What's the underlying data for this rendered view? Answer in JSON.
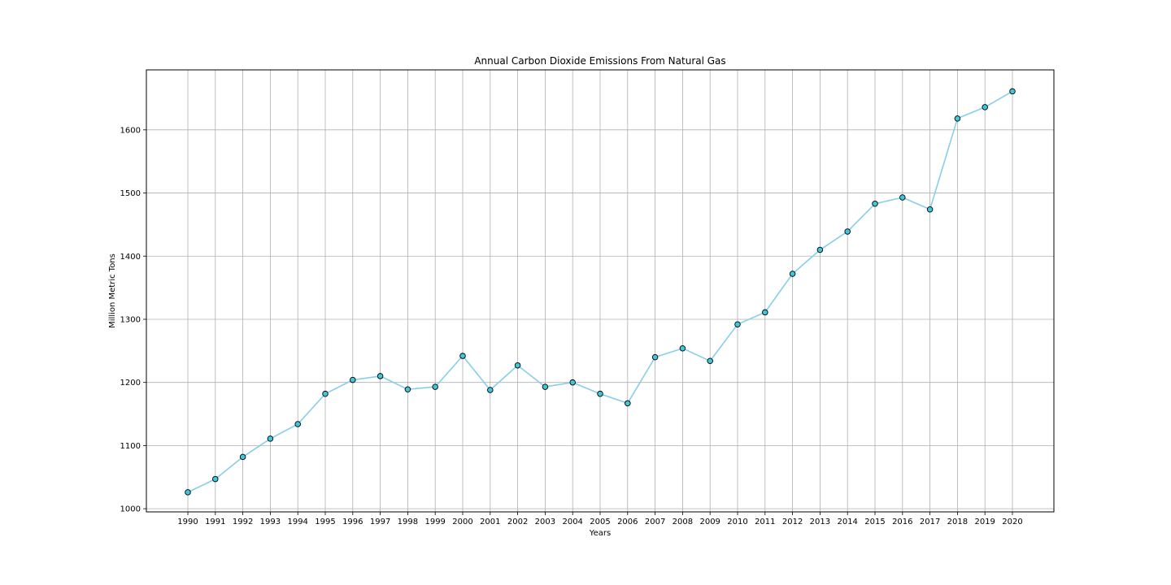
{
  "chart_data": {
    "type": "line",
    "title": "Annual Carbon Dioxide Emissions From Natural Gas",
    "xlabel": "Years",
    "ylabel": "Million Metric Tons",
    "categories": [
      "1990",
      "1991",
      "1992",
      "1993",
      "1994",
      "1995",
      "1996",
      "1997",
      "1998",
      "1999",
      "2000",
      "2001",
      "2002",
      "2003",
      "2004",
      "2005",
      "2006",
      "2007",
      "2008",
      "2009",
      "2010",
      "2011",
      "2012",
      "2013",
      "2014",
      "2015",
      "2016",
      "2017",
      "2018",
      "2019",
      "2020"
    ],
    "series": [
      {
        "values": [
          1026,
          1047,
          1082,
          1111,
          1134,
          1182,
          1204,
          1210,
          1189,
          1193,
          1242,
          1188,
          1227,
          1193,
          1200,
          1182,
          1167,
          1240,
          1254,
          1234,
          1292,
          1311,
          1372,
          1410,
          1439,
          1483,
          1493,
          1474,
          1618,
          1636,
          1661
        ]
      }
    ],
    "yticks": [
      1000,
      1100,
      1200,
      1300,
      1400,
      1500,
      1600
    ],
    "ylim": [
      995,
      1695
    ],
    "grid": true,
    "colors": {
      "line": "#87ceeb",
      "marker_fill": "#3fc7da",
      "marker_edge": "#000000",
      "grid": "#b0b0b0",
      "axes": "#000000"
    }
  }
}
